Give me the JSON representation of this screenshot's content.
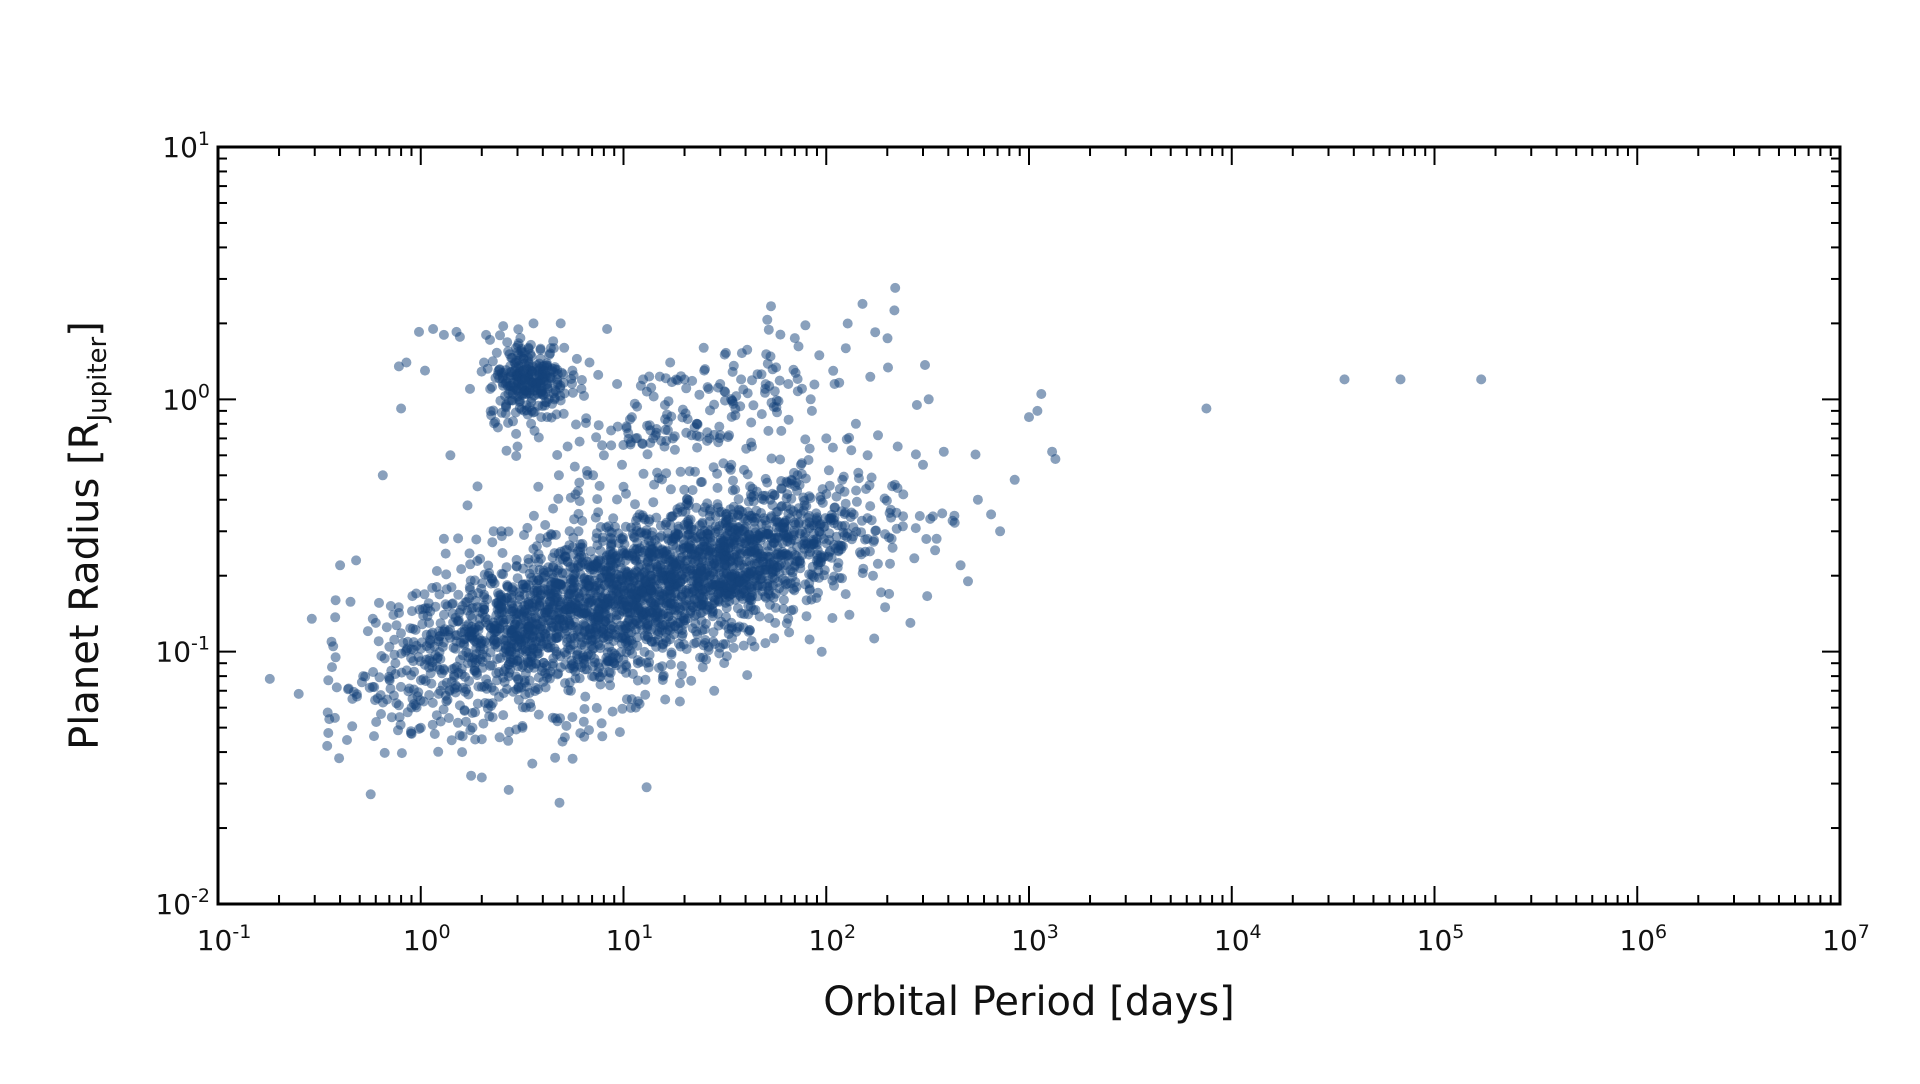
{
  "chart_data": {
    "type": "scatter",
    "xlabel": "Orbital Period [days]",
    "ylabel": "Planet Radius [R",
    "ylabel_sub": "Jupiter",
    "ylabel_end": "]",
    "x_scale": "log",
    "y_scale": "log",
    "xlim": [
      0.1,
      10000000
    ],
    "ylim": [
      0.01,
      10
    ],
    "x_ticks": [
      {
        "base": "10",
        "exp": "-1",
        "value": 0.1
      },
      {
        "base": "10",
        "exp": "0",
        "value": 1
      },
      {
        "base": "10",
        "exp": "1",
        "value": 10
      },
      {
        "base": "10",
        "exp": "2",
        "value": 100
      },
      {
        "base": "10",
        "exp": "3",
        "value": 1000
      },
      {
        "base": "10",
        "exp": "4",
        "value": 10000
      },
      {
        "base": "10",
        "exp": "5",
        "value": 100000
      },
      {
        "base": "10",
        "exp": "6",
        "value": 1000000
      },
      {
        "base": "10",
        "exp": "7",
        "value": 10000000
      }
    ],
    "y_ticks": [
      {
        "base": "10",
        "exp": "-2",
        "value": 0.01
      },
      {
        "base": "10",
        "exp": "-1",
        "value": 0.1
      },
      {
        "base": "10",
        "exp": "0",
        "value": 1
      },
      {
        "base": "10",
        "exp": "1",
        "value": 10
      }
    ],
    "grid": false,
    "legend": "none",
    "marker_color": "#14427a",
    "marker_opacity": 0.5,
    "points": [
      [
        0.18,
        0.078
      ],
      [
        0.25,
        0.068
      ],
      [
        0.29,
        0.135
      ],
      [
        0.35,
        0.077
      ],
      [
        0.37,
        0.105
      ],
      [
        0.38,
        0.095
      ],
      [
        0.38,
        0.16
      ],
      [
        0.4,
        0.22
      ],
      [
        0.46,
        0.065
      ],
      [
        0.48,
        0.23
      ],
      [
        0.52,
        0.08
      ],
      [
        0.56,
        0.072
      ],
      [
        0.58,
        0.135
      ],
      [
        0.6,
        0.13
      ],
      [
        0.62,
        0.11
      ],
      [
        0.65,
        0.5
      ],
      [
        0.68,
        0.125
      ],
      [
        0.7,
        0.078
      ],
      [
        0.72,
        0.055
      ],
      [
        0.75,
        0.09
      ],
      [
        0.78,
        1.35
      ],
      [
        0.8,
        0.92
      ],
      [
        0.85,
        1.4
      ],
      [
        0.9,
        0.06
      ],
      [
        0.95,
        0.17
      ],
      [
        0.98,
        1.85
      ],
      [
        1.05,
        1.3
      ],
      [
        1.1,
        0.13
      ],
      [
        1.15,
        1.9
      ],
      [
        1.2,
        0.056
      ],
      [
        1.25,
        0.07
      ],
      [
        1.3,
        1.8
      ],
      [
        1.3,
        0.28
      ],
      [
        1.4,
        0.6
      ],
      [
        1.5,
        1.85
      ],
      [
        1.6,
        0.04
      ],
      [
        1.65,
        0.12
      ],
      [
        1.7,
        0.38
      ],
      [
        1.75,
        1.1
      ],
      [
        1.8,
        0.05
      ],
      [
        1.9,
        0.15
      ],
      [
        2.0,
        0.045
      ],
      [
        2.05,
        1.4
      ],
      [
        2.1,
        1.8
      ],
      [
        2.15,
        0.2
      ],
      [
        2.2,
        1.1
      ],
      [
        2.3,
        0.07
      ],
      [
        2.4,
        1.25
      ],
      [
        2.5,
        0.3
      ],
      [
        2.55,
        1.95
      ],
      [
        2.6,
        0.16
      ],
      [
        2.7,
        1.55
      ],
      [
        2.8,
        0.1
      ],
      [
        2.9,
        1.4
      ],
      [
        3.0,
        0.65
      ],
      [
        3.05,
        1.0
      ],
      [
        3.1,
        1.75
      ],
      [
        3.2,
        1.3
      ],
      [
        3.3,
        0.06
      ],
      [
        3.4,
        1.6
      ],
      [
        3.5,
        0.8
      ],
      [
        3.55,
        0.036
      ],
      [
        3.6,
        2.0
      ],
      [
        3.7,
        1.15
      ],
      [
        3.8,
        0.45
      ],
      [
        3.9,
        1.45
      ],
      [
        4.0,
        1.05
      ],
      [
        4.1,
        0.2
      ],
      [
        4.2,
        0.85
      ],
      [
        4.3,
        1.5
      ],
      [
        4.4,
        0.13
      ],
      [
        4.5,
        1.7
      ],
      [
        4.6,
        0.038
      ],
      [
        4.7,
        1.2
      ],
      [
        4.8,
        0.5
      ],
      [
        4.9,
        2.0
      ],
      [
        5.0,
        0.044
      ],
      [
        5.1,
        1.6
      ],
      [
        5.3,
        0.65
      ],
      [
        5.5,
        0.07
      ],
      [
        5.6,
        1.3
      ],
      [
        5.8,
        0.42
      ],
      [
        6.0,
        0.3
      ],
      [
        6.2,
        1.1
      ],
      [
        6.4,
        0.046
      ],
      [
        6.6,
        0.52
      ],
      [
        6.8,
        1.4
      ],
      [
        7.0,
        0.08
      ],
      [
        7.3,
        0.34
      ],
      [
        7.5,
        1.25
      ],
      [
        7.8,
        0.052
      ],
      [
        8.0,
        0.6
      ],
      [
        8.3,
        1.9
      ],
      [
        8.6,
        0.25
      ],
      [
        9.0,
        0.09
      ],
      [
        9.3,
        1.15
      ],
      [
        9.6,
        0.048
      ],
      [
        10.0,
        0.45
      ],
      [
        10.5,
        0.15
      ],
      [
        11.0,
        0.85
      ],
      [
        11.5,
        0.06
      ],
      [
        12.0,
        0.35
      ],
      [
        12.5,
        1.2
      ],
      [
        13.0,
        0.029
      ],
      [
        13.5,
        0.2
      ],
      [
        14.0,
        0.7
      ],
      [
        15.0,
        0.12
      ],
      [
        16.0,
        0.95
      ],
      [
        17.0,
        1.4
      ],
      [
        18.0,
        0.28
      ],
      [
        19.0,
        0.075
      ],
      [
        20.0,
        1.2
      ],
      [
        21.0,
        0.38
      ],
      [
        22.0,
        0.15
      ],
      [
        23.0,
        0.8
      ],
      [
        25.0,
        1.3
      ],
      [
        26.0,
        0.22
      ],
      [
        28.0,
        0.07
      ],
      [
        30.0,
        1.15
      ],
      [
        32.0,
        0.35
      ],
      [
        34.0,
        0.55
      ],
      [
        36.0,
        0.12
      ],
      [
        38.0,
        1.2
      ],
      [
        40.0,
        0.25
      ],
      [
        43.0,
        0.65
      ],
      [
        46.0,
        0.18
      ],
      [
        50.0,
        1.1
      ],
      [
        53.0,
        0.4
      ],
      [
        56.0,
        0.13
      ],
      [
        60.0,
        0.75
      ],
      [
        65.0,
        1.15
      ],
      [
        70.0,
        0.22
      ],
      [
        75.0,
        0.55
      ],
      [
        80.0,
        0.16
      ],
      [
        85.0,
        0.9
      ],
      [
        90.0,
        0.33
      ],
      [
        95.0,
        0.1
      ],
      [
        100.0,
        0.7
      ],
      [
        110.0,
        1.15
      ],
      [
        115.0,
        0.25
      ],
      [
        120.0,
        0.48
      ],
      [
        130.0,
        0.14
      ],
      [
        140.0,
        0.8
      ],
      [
        150.0,
        0.33
      ],
      [
        160.0,
        0.6
      ],
      [
        170.0,
        0.2
      ],
      [
        180.0,
        0.72
      ],
      [
        195.0,
        0.15
      ],
      [
        210.0,
        0.28
      ],
      [
        225.0,
        0.65
      ],
      [
        240.0,
        0.42
      ],
      [
        260.0,
        0.13
      ],
      [
        280.0,
        0.95
      ],
      [
        300.0,
        0.55
      ],
      [
        320.0,
        1.0
      ],
      [
        350.0,
        0.28
      ],
      [
        380.0,
        0.62
      ],
      [
        420.0,
        0.33
      ],
      [
        460.0,
        0.22
      ],
      [
        500.0,
        0.19
      ],
      [
        560.0,
        0.4
      ],
      [
        650.0,
        0.35
      ],
      [
        720.0,
        0.3
      ],
      [
        850.0,
        0.48
      ],
      [
        1000.0,
        0.85
      ],
      [
        1100.0,
        0.9
      ],
      [
        1150.0,
        1.05
      ],
      [
        1300.0,
        0.62
      ],
      [
        1350.0,
        0.58
      ],
      [
        7500.0,
        0.92
      ],
      [
        36000.0,
        1.2
      ],
      [
        68000.0,
        1.2
      ],
      [
        170000.0,
        1.2
      ]
    ],
    "clusters": [
      {
        "x_center": 10,
        "x_spread": 0.55,
        "y_center": 0.16,
        "y_spread": 0.18,
        "count": 1700
      },
      {
        "x_center": 3.4,
        "x_spread": 0.1,
        "y_center": 1.2,
        "y_spread": 0.08,
        "count": 260
      },
      {
        "x_center": 30,
        "x_spread": 0.35,
        "y_center": 0.22,
        "y_spread": 0.12,
        "count": 700
      },
      {
        "x_center": 2.5,
        "x_spread": 0.3,
        "y_center": 0.12,
        "y_spread": 0.12,
        "count": 400
      },
      {
        "x_center": 25,
        "x_spread": 0.4,
        "y_center": 0.9,
        "y_spread": 0.12,
        "count": 180
      }
    ]
  }
}
